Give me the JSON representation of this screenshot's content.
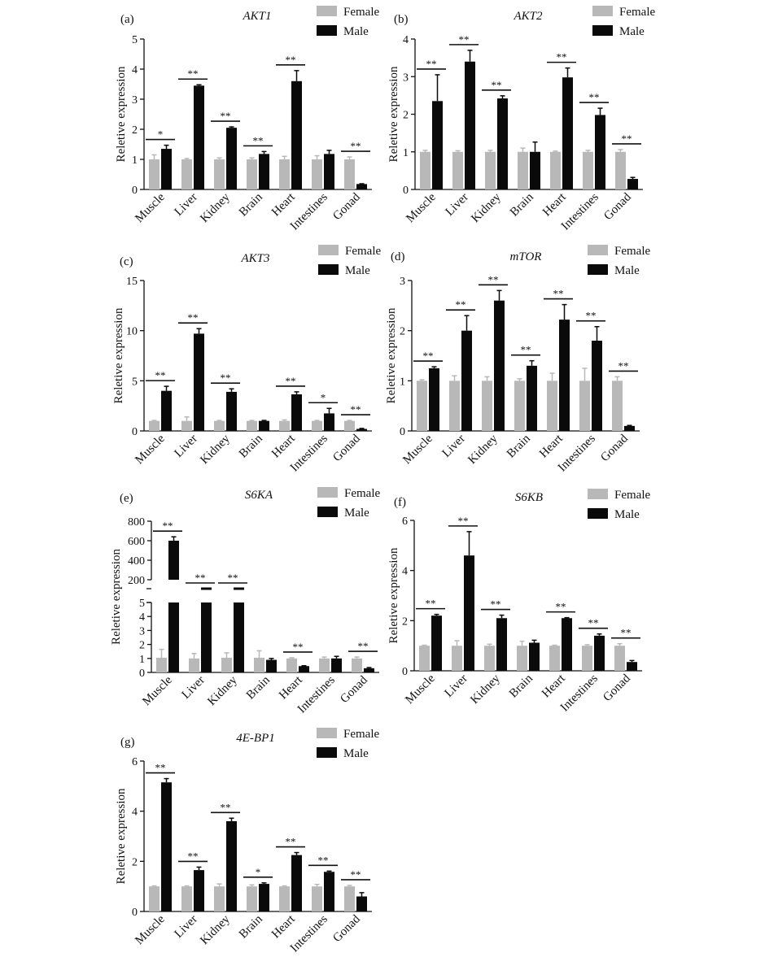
{
  "legend_labels": [
    "Female",
    "Male"
  ],
  "colors": {
    "female": "#b8b8b8",
    "male": "#0a0a0a",
    "axis": "#111111"
  },
  "chart_data": [
    {
      "panel": "(a)",
      "title": "AKT1",
      "type": "bar",
      "ylabel": "Reletive expression",
      "categories": [
        "Muscle",
        "Liver",
        "Kidney",
        "Brain",
        "Heart",
        "Intestines",
        "Gonad"
      ],
      "ylim": [
        0,
        5
      ],
      "yticks": [
        0,
        1,
        2,
        3,
        4,
        5
      ],
      "series": [
        {
          "name": "Female",
          "values": [
            1.0,
            1.0,
            1.0,
            1.0,
            1.0,
            1.0,
            1.0
          ],
          "errors": [
            0.15,
            0.03,
            0.05,
            0.05,
            0.1,
            0.12,
            0.08
          ]
        },
        {
          "name": "Male",
          "values": [
            1.35,
            3.45,
            2.05,
            1.18,
            3.6,
            1.18,
            0.18
          ],
          "errors": [
            0.12,
            0.03,
            0.03,
            0.08,
            0.35,
            0.12,
            0.01
          ]
        }
      ],
      "significance": [
        "*",
        "**",
        "**",
        "**",
        "**",
        "",
        "**"
      ]
    },
    {
      "panel": "(b)",
      "title": "AKT2",
      "type": "bar",
      "ylabel": "Reletive expression",
      "categories": [
        "Muscle",
        "Liver",
        "Kidney",
        "Brain",
        "Heart",
        "Intestines",
        "Gonad"
      ],
      "ylim": [
        0,
        4
      ],
      "yticks": [
        0,
        1,
        2,
        3,
        4
      ],
      "series": [
        {
          "name": "Female",
          "values": [
            1.0,
            1.0,
            1.0,
            1.0,
            1.0,
            1.0,
            1.0
          ],
          "errors": [
            0.04,
            0.03,
            0.04,
            0.1,
            0.02,
            0.04,
            0.06
          ]
        },
        {
          "name": "Male",
          "values": [
            2.35,
            3.4,
            2.42,
            1.0,
            2.98,
            1.98,
            0.28
          ],
          "errors": [
            0.7,
            0.3,
            0.07,
            0.26,
            0.25,
            0.18,
            0.04
          ]
        }
      ],
      "significance": [
        "**",
        "**",
        "**",
        "",
        "**",
        "**",
        "**"
      ]
    },
    {
      "panel": "(c)",
      "title": "AKT3",
      "type": "bar",
      "ylabel": "Reletive expression",
      "categories": [
        "Muscle",
        "Liver",
        "Kidney",
        "Brain",
        "Heart",
        "Intestines",
        "Gonad"
      ],
      "ylim": [
        0,
        15
      ],
      "yticks": [
        0,
        5,
        10,
        15
      ],
      "series": [
        {
          "name": "Female",
          "values": [
            1.0,
            1.0,
            1.0,
            1.0,
            1.0,
            1.0,
            1.0
          ],
          "errors": [
            0.05,
            0.4,
            0.05,
            0.05,
            0.1,
            0.05,
            0.05
          ]
        },
        {
          "name": "Male",
          "values": [
            4.0,
            9.7,
            3.9,
            1.0,
            3.65,
            1.75,
            0.2
          ],
          "errors": [
            0.45,
            0.5,
            0.3,
            0.05,
            0.25,
            0.5,
            0.05
          ]
        }
      ],
      "significance": [
        "**",
        "**",
        "**",
        "",
        "**",
        "*",
        "**"
      ]
    },
    {
      "panel": "(d)",
      "title": "mTOR",
      "type": "bar",
      "ylabel": "Reletive expression",
      "categories": [
        "Muscle",
        "Liver",
        "Kidney",
        "Brain",
        "Heart",
        "Intestines",
        "Gonad"
      ],
      "ylim": [
        0,
        3
      ],
      "yticks": [
        0,
        1,
        2,
        3
      ],
      "series": [
        {
          "name": "Female",
          "values": [
            1.0,
            1.0,
            1.0,
            1.0,
            1.0,
            1.0,
            1.0
          ],
          "errors": [
            0.02,
            0.1,
            0.08,
            0.04,
            0.15,
            0.25,
            0.08
          ]
        },
        {
          "name": "Male",
          "values": [
            1.25,
            2.0,
            2.6,
            1.3,
            2.22,
            1.8,
            0.1
          ],
          "errors": [
            0.03,
            0.3,
            0.2,
            0.1,
            0.3,
            0.28,
            0.01
          ]
        }
      ],
      "significance": [
        "**",
        "**",
        "**",
        "**",
        "**",
        "**",
        "**"
      ]
    },
    {
      "panel": "(e)",
      "title": "S6KA",
      "type": "bar",
      "ylabel": "Reletive expression",
      "categories": [
        "Muscle",
        "Liver",
        "Kidney",
        "Brain",
        "Heart",
        "Intestines",
        "Gonad"
      ],
      "broken_axis": true,
      "yticks_lower": [
        0,
        1,
        2,
        3,
        4,
        5
      ],
      "yticks_upper": [
        200,
        400,
        600,
        800
      ],
      "series": [
        {
          "name": "Female",
          "values": [
            1.05,
            1.0,
            1.05,
            1.05,
            1.0,
            1.0,
            1.0
          ],
          "errors": [
            0.6,
            0.35,
            0.35,
            0.5,
            0.05,
            0.1,
            0.1
          ]
        },
        {
          "name": "Male",
          "values": [
            600,
            50,
            50,
            0.9,
            0.45,
            1.0,
            0.3
          ],
          "errors": [
            40,
            0,
            0,
            0.1,
            0.03,
            0.15,
            0.05
          ]
        }
      ],
      "significance": [
        "**",
        "**",
        "**",
        "",
        "**",
        "",
        "**"
      ]
    },
    {
      "panel": "(f)",
      "title": "S6KB",
      "type": "bar",
      "ylabel": "Reletive expression",
      "categories": [
        "Muscle",
        "Liver",
        "Kidney",
        "Brain",
        "Heart",
        "Intestines",
        "Gonad"
      ],
      "ylim": [
        0,
        6
      ],
      "yticks": [
        0,
        2,
        4,
        6
      ],
      "series": [
        {
          "name": "Female",
          "values": [
            1.0,
            1.0,
            1.0,
            1.0,
            1.0,
            1.0,
            1.0
          ],
          "errors": [
            0.02,
            0.2,
            0.06,
            0.18,
            0.02,
            0.04,
            0.08
          ]
        },
        {
          "name": "Male",
          "values": [
            2.2,
            4.6,
            2.1,
            1.12,
            2.1,
            1.4,
            0.35
          ],
          "errors": [
            0.05,
            0.95,
            0.12,
            0.1,
            0.02,
            0.07,
            0.06
          ]
        }
      ],
      "significance": [
        "**",
        "**",
        "**",
        "",
        "**",
        "**",
        "**"
      ]
    },
    {
      "panel": "(g)",
      "title": "4E-BP1",
      "type": "bar",
      "ylabel": "Reletive expression",
      "categories": [
        "Muscle",
        "Liver",
        "Kidney",
        "Brain",
        "Heart",
        "Intestines",
        "Gonad"
      ],
      "ylim": [
        0,
        6
      ],
      "yticks": [
        0,
        2,
        4,
        6
      ],
      "series": [
        {
          "name": "Female",
          "values": [
            1.0,
            1.0,
            1.0,
            1.0,
            1.0,
            1.0,
            1.0
          ],
          "errors": [
            0.02,
            0.02,
            0.1,
            0.06,
            0.02,
            0.08,
            0.04
          ]
        },
        {
          "name": "Male",
          "values": [
            5.15,
            1.65,
            3.6,
            1.1,
            2.25,
            1.58,
            0.6
          ],
          "errors": [
            0.15,
            0.12,
            0.12,
            0.04,
            0.1,
            0.03,
            0.15
          ]
        }
      ],
      "significance": [
        "**",
        "**",
        "**",
        "*",
        "**",
        "**",
        "**"
      ]
    }
  ]
}
